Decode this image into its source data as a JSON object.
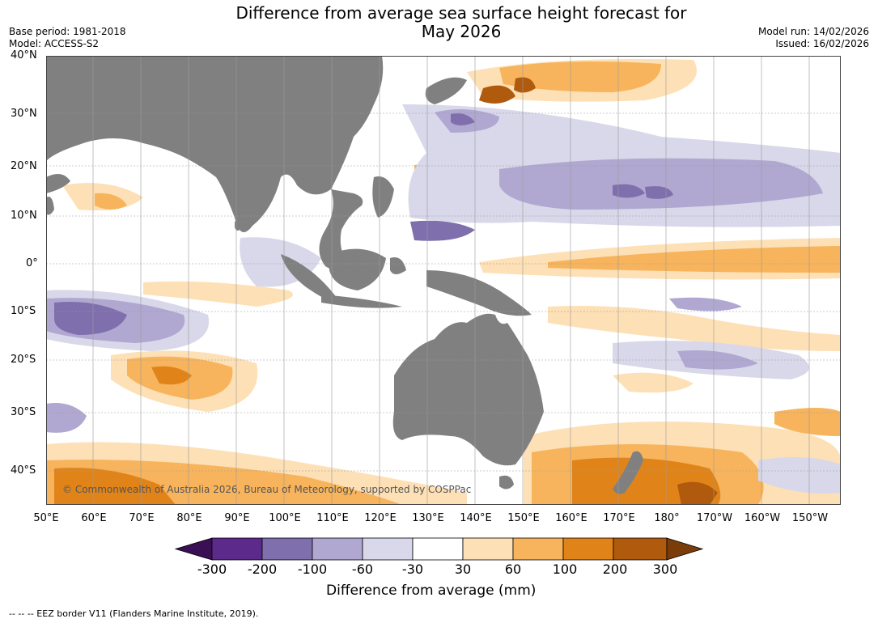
{
  "title": {
    "line1": "Difference from average sea surface height forecast for",
    "line2": "May 2026"
  },
  "meta": {
    "base_period": "Base period: 1981-2018",
    "model": "Model: ACCESS-S2",
    "model_run": "Model run: 14/02/2026",
    "issued": "Issued: 16/02/2026"
  },
  "map": {
    "latitude_labels": [
      "40°N",
      "30°N",
      "20°N",
      "10°N",
      "0°",
      "10°S",
      "20°S",
      "30°S",
      "40°S"
    ],
    "longitude_labels": [
      "50°E",
      "60°E",
      "70°E",
      "80°E",
      "90°E",
      "100°E",
      "110°E",
      "120°E",
      "130°E",
      "140°E",
      "150°E",
      "160°E",
      "170°E",
      "180°",
      "170°W",
      "160°W",
      "150°W"
    ],
    "copyright": "© Commonwealth of Australia 2026, Bureau of Meteorology, supported by COSPPac",
    "land_color": "#808080"
  },
  "colorbar": {
    "title": "Difference from average (mm)",
    "ticks": [
      "-300",
      "-200",
      "-100",
      "-60",
      "-30",
      "30",
      "60",
      "100",
      "200",
      "300"
    ],
    "colors": [
      "#3b0f55",
      "#5c2a8a",
      "#7f6fad",
      "#b0a8d0",
      "#d8d8ea",
      "#ffffff",
      "#fde0b5",
      "#f7b45c",
      "#e0841a",
      "#b05a0e",
      "#7a3d0a"
    ]
  },
  "footer": {
    "eez": "--  --  -- EEZ border V11 (Flanders Marine Institute, 2019)."
  }
}
